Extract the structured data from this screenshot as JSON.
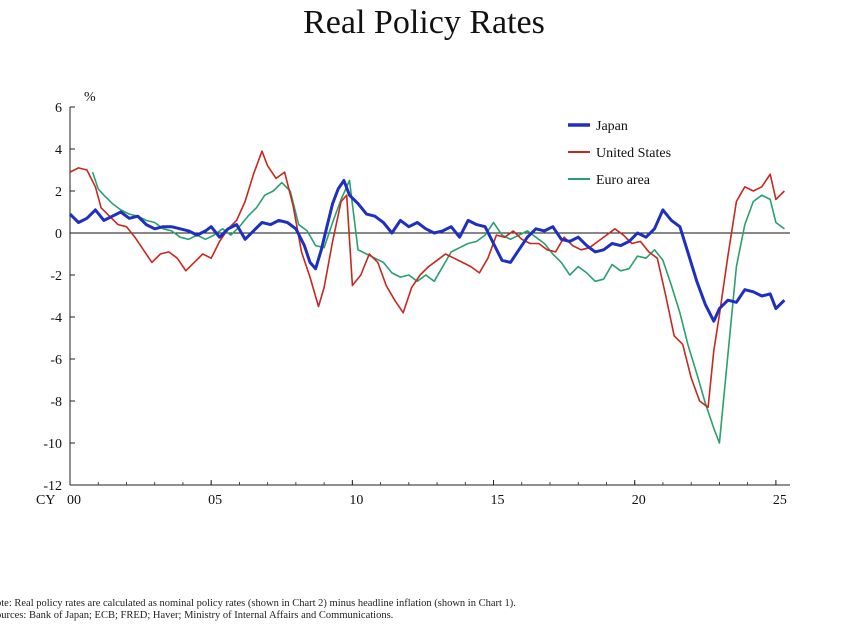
{
  "chart_data": {
    "type": "line",
    "title": "Real Policy Rates",
    "ylabel": "%",
    "xlabel": "CY",
    "x_ticks": [
      {
        "value": 2000,
        "label": "00"
      },
      {
        "value": 2005,
        "label": "05"
      },
      {
        "value": 2010,
        "label": "10"
      },
      {
        "value": 2015,
        "label": "15"
      },
      {
        "value": 2020,
        "label": "20"
      },
      {
        "value": 2025,
        "label": "25"
      }
    ],
    "y_ticks": [
      6,
      4,
      2,
      0,
      -2,
      -4,
      -6,
      -8,
      -10,
      -12
    ],
    "xlim": [
      2000,
      2025.5
    ],
    "ylim": [
      -12,
      6
    ],
    "grid": false,
    "zero_line": true,
    "legend": "top-right",
    "series": [
      {
        "name": "Japan",
        "color": "#1f2fbf",
        "width": 3,
        "x": [
          2000,
          2000.3,
          2000.6,
          2000.9,
          2001.2,
          2001.5,
          2001.8,
          2002.1,
          2002.4,
          2002.7,
          2003.0,
          2003.3,
          2003.6,
          2003.9,
          2004.2,
          2004.5,
          2004.8,
          2005.0,
          2005.3,
          2005.6,
          2005.9,
          2006.2,
          2006.5,
          2006.8,
          2007.1,
          2007.4,
          2007.7,
          2008.0,
          2008.3,
          2008.5,
          2008.7,
          2008.9,
          2009.1,
          2009.3,
          2009.5,
          2009.7,
          2009.9,
          2010.2,
          2010.5,
          2010.8,
          2011.1,
          2011.4,
          2011.7,
          2012.0,
          2012.3,
          2012.6,
          2012.9,
          2013.2,
          2013.5,
          2013.8,
          2014.1,
          2014.4,
          2014.7,
          2015.0,
          2015.3,
          2015.6,
          2015.9,
          2016.2,
          2016.5,
          2016.8,
          2017.1,
          2017.4,
          2017.7,
          2018.0,
          2018.3,
          2018.6,
          2018.9,
          2019.2,
          2019.5,
          2019.8,
          2020.1,
          2020.4,
          2020.7,
          2021.0,
          2021.3,
          2021.6,
          2021.9,
          2022.2,
          2022.5,
          2022.8,
          2023.0,
          2023.3,
          2023.6,
          2023.9,
          2024.2,
          2024.5,
          2024.8,
          2025.0,
          2025.3
        ],
        "y": [
          0.9,
          0.5,
          0.7,
          1.1,
          0.6,
          0.8,
          1.0,
          0.7,
          0.8,
          0.4,
          0.2,
          0.3,
          0.3,
          0.2,
          0.1,
          -0.1,
          0.1,
          0.3,
          -0.2,
          0.2,
          0.4,
          -0.3,
          0.1,
          0.5,
          0.4,
          0.6,
          0.5,
          0.2,
          -0.6,
          -1.4,
          -1.7,
          -0.8,
          0.3,
          1.4,
          2.1,
          2.5,
          1.8,
          1.4,
          0.9,
          0.8,
          0.5,
          0.0,
          0.6,
          0.3,
          0.5,
          0.2,
          0.0,
          0.1,
          0.3,
          -0.2,
          0.6,
          0.4,
          0.3,
          -0.5,
          -1.3,
          -1.4,
          -0.8,
          -0.2,
          0.2,
          0.1,
          0.3,
          -0.3,
          -0.4,
          -0.2,
          -0.6,
          -0.9,
          -0.8,
          -0.5,
          -0.6,
          -0.4,
          0.0,
          -0.2,
          0.2,
          1.1,
          0.6,
          0.3,
          -1.0,
          -2.3,
          -3.4,
          -4.2,
          -3.6,
          -3.2,
          -3.3,
          -2.7,
          -2.8,
          -3.0,
          -2.9,
          -3.6,
          -3.2
        ]
      },
      {
        "name": "United States",
        "color": "#c8281e",
        "width": 1.6,
        "x": [
          2000,
          2000.3,
          2000.6,
          2000.9,
          2001.1,
          2001.4,
          2001.7,
          2002.0,
          2002.3,
          2002.6,
          2002.9,
          2003.2,
          2003.5,
          2003.8,
          2004.1,
          2004.4,
          2004.7,
          2005.0,
          2005.3,
          2005.6,
          2005.9,
          2006.2,
          2006.5,
          2006.8,
          2007.0,
          2007.3,
          2007.6,
          2007.9,
          2008.2,
          2008.5,
          2008.8,
          2009.0,
          2009.3,
          2009.6,
          2009.8,
          2010.0,
          2010.3,
          2010.6,
          2010.9,
          2011.2,
          2011.5,
          2011.8,
          2012.1,
          2012.4,
          2012.7,
          2013.0,
          2013.3,
          2013.6,
          2013.9,
          2014.2,
          2014.5,
          2014.8,
          2015.1,
          2015.4,
          2015.7,
          2016.0,
          2016.3,
          2016.6,
          2016.9,
          2017.2,
          2017.5,
          2017.8,
          2018.1,
          2018.4,
          2018.7,
          2019.0,
          2019.3,
          2019.6,
          2019.9,
          2020.2,
          2020.5,
          2020.8,
          2021.1,
          2021.4,
          2021.7,
          2022.0,
          2022.3,
          2022.6,
          2022.8,
          2023.0,
          2023.3,
          2023.6,
          2023.9,
          2024.2,
          2024.5,
          2024.8,
          2025.0,
          2025.3
        ],
        "y": [
          2.9,
          3.1,
          3.0,
          2.2,
          1.2,
          0.8,
          0.4,
          0.3,
          -0.2,
          -0.8,
          -1.4,
          -1.0,
          -0.9,
          -1.2,
          -1.8,
          -1.4,
          -1.0,
          -1.2,
          -0.4,
          0.2,
          0.6,
          1.5,
          2.8,
          3.9,
          3.2,
          2.6,
          2.9,
          1.3,
          -0.9,
          -2.1,
          -3.5,
          -2.6,
          -0.4,
          1.5,
          1.8,
          -2.5,
          -2.0,
          -1.0,
          -1.4,
          -2.5,
          -3.2,
          -3.8,
          -2.6,
          -2.0,
          -1.6,
          -1.3,
          -1.0,
          -1.2,
          -1.4,
          -1.6,
          -1.9,
          -1.2,
          -0.1,
          -0.2,
          0.1,
          -0.3,
          -0.5,
          -0.5,
          -0.8,
          -0.9,
          -0.2,
          -0.6,
          -0.8,
          -0.7,
          -0.4,
          -0.1,
          0.2,
          -0.1,
          -0.5,
          -0.4,
          -0.9,
          -1.2,
          -3.0,
          -4.9,
          -5.3,
          -6.9,
          -8.0,
          -8.3,
          -5.6,
          -3.9,
          -1.1,
          1.5,
          2.2,
          2.0,
          2.2,
          2.8,
          1.6,
          2.0
        ]
      },
      {
        "name": "Euro area",
        "color": "#2aa06e",
        "width": 1.6,
        "x": [
          2000.8,
          2001.0,
          2001.2,
          2001.5,
          2001.8,
          2002.1,
          2002.4,
          2002.7,
          2003.0,
          2003.3,
          2003.6,
          2003.9,
          2004.2,
          2004.5,
          2004.8,
          2005.1,
          2005.4,
          2005.7,
          2006.0,
          2006.3,
          2006.6,
          2006.9,
          2007.2,
          2007.5,
          2007.8,
          2008.1,
          2008.4,
          2008.7,
          2009.0,
          2009.3,
          2009.6,
          2009.9,
          2010.2,
          2010.5,
          2010.8,
          2011.1,
          2011.4,
          2011.7,
          2012.0,
          2012.3,
          2012.6,
          2012.9,
          2013.2,
          2013.5,
          2013.8,
          2014.1,
          2014.4,
          2014.7,
          2015.0,
          2015.3,
          2015.6,
          2015.9,
          2016.2,
          2016.5,
          2016.8,
          2017.1,
          2017.4,
          2017.7,
          2018.0,
          2018.3,
          2018.6,
          2018.9,
          2019.2,
          2019.5,
          2019.8,
          2020.1,
          2020.4,
          2020.7,
          2021.0,
          2021.3,
          2021.6,
          2021.9,
          2022.2,
          2022.5,
          2022.8,
          2023.0,
          2023.3,
          2023.6,
          2023.9,
          2024.2,
          2024.5,
          2024.8,
          2025.0,
          2025.3
        ],
        "y": [
          2.9,
          2.1,
          1.8,
          1.4,
          1.1,
          0.9,
          0.8,
          0.6,
          0.5,
          0.2,
          0.1,
          -0.2,
          -0.3,
          -0.1,
          -0.3,
          -0.1,
          0.2,
          -0.1,
          0.3,
          0.8,
          1.2,
          1.8,
          2.0,
          2.4,
          2.0,
          0.4,
          0.1,
          -0.6,
          -0.7,
          0.5,
          1.6,
          2.5,
          -0.8,
          -1.0,
          -1.2,
          -1.4,
          -1.9,
          -2.1,
          -2.0,
          -2.3,
          -2.0,
          -2.3,
          -1.6,
          -0.9,
          -0.7,
          -0.5,
          -0.4,
          -0.1,
          0.5,
          -0.1,
          -0.3,
          -0.1,
          0.1,
          -0.2,
          -0.5,
          -1.0,
          -1.4,
          -2.0,
          -1.6,
          -1.9,
          -2.3,
          -2.2,
          -1.5,
          -1.8,
          -1.7,
          -1.1,
          -1.2,
          -0.8,
          -1.3,
          -2.5,
          -3.8,
          -5.4,
          -6.7,
          -8.1,
          -9.3,
          -10.0,
          -5.8,
          -1.6,
          0.4,
          1.5,
          1.8,
          1.6,
          0.5,
          0.2
        ]
      }
    ]
  },
  "footnotes": {
    "note": "ote: Real policy rates are calculated as nominal policy rates (shown in Chart 2) minus headline inflation (shown in Chart 1).",
    "sources": "ources: Bank of Japan; ECB; FRED; Haver; Ministry of Internal Affairs and Communications."
  }
}
